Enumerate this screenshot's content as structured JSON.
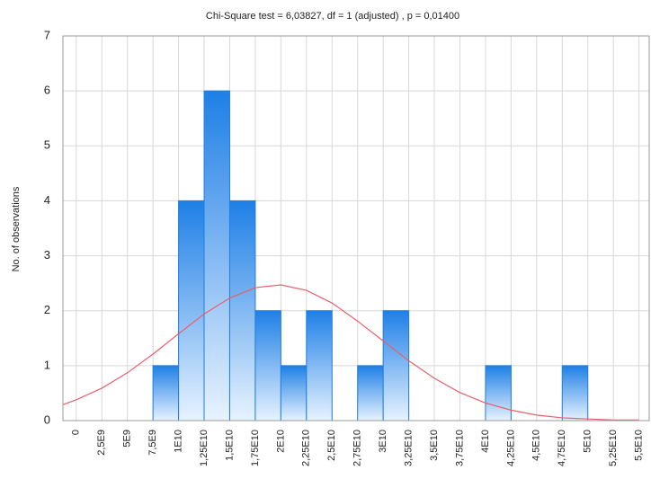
{
  "chart_data": {
    "type": "histogram",
    "title": "Chi-Square test = 6,03827, df = 1 (adjusted) , p = 0,01400",
    "ylabel": "No. of observations",
    "bins": [
      0,
      2500000000,
      5000000000,
      7500000000,
      10000000000,
      12500000000,
      15000000000,
      17500000000,
      20000000000,
      22500000000,
      25000000000,
      27500000000,
      30000000000,
      32500000000,
      35000000000,
      37500000000,
      40000000000,
      42500000000,
      45000000000,
      47500000000,
      50000000000,
      52500000000,
      55000000000
    ],
    "values": [
      0,
      0,
      0,
      1,
      4,
      6,
      4,
      2,
      1,
      2,
      0,
      1,
      2,
      0,
      0,
      0,
      1,
      0,
      0,
      1,
      0,
      0
    ],
    "color": "#1e7fe6",
    "curve": {
      "color": "#e8606a",
      "x": [
        -1300000000,
        0,
        2500000000,
        5000000000,
        7500000000,
        10000000000,
        12500000000,
        15000000000,
        17500000000,
        20000000000,
        22500000000,
        25000000000,
        27500000000,
        30000000000,
        32500000000,
        35000000000,
        37500000000,
        40000000000,
        42500000000,
        45000000000,
        47500000000,
        50000000000,
        52500000000,
        55000000000
      ],
      "values": [
        0.29,
        0.38,
        0.59,
        0.87,
        1.21,
        1.58,
        1.94,
        2.23,
        2.42,
        2.47,
        2.37,
        2.14,
        1.81,
        1.45,
        1.09,
        0.77,
        0.51,
        0.32,
        0.19,
        0.1,
        0.05,
        0.03,
        0.01,
        0.01
      ]
    },
    "xlim": [
      -1300000000,
      56000000000
    ],
    "xticks": [
      0,
      {
        "value": 2500000000,
        "label": "2,5E9"
      },
      {
        "value": 5000000000,
        "label": "5E9"
      },
      {
        "value": 7500000000,
        "label": "7,5E9"
      },
      {
        "value": 10000000000,
        "label": "1E10"
      },
      {
        "value": 12500000000,
        "label": "1,25E10"
      },
      {
        "value": 15000000000,
        "label": "1,5E10"
      },
      {
        "value": 17500000000,
        "label": "1,75E10"
      },
      {
        "value": 20000000000,
        "label": "2E10"
      },
      {
        "value": 22500000000,
        "label": "2,25E10"
      },
      {
        "value": 25000000000,
        "label": "2,5E10"
      },
      {
        "value": 27500000000,
        "label": "2,75E10"
      },
      {
        "value": 30000000000,
        "label": "3E10"
      },
      {
        "value": 32500000000,
        "label": "3,25E10"
      },
      {
        "value": 35000000000,
        "label": "3,5E10"
      },
      {
        "value": 37500000000,
        "label": "3,75E10"
      },
      {
        "value": 40000000000,
        "label": "4E10"
      },
      {
        "value": 42500000000,
        "label": "4,25E10"
      },
      {
        "value": 45000000000,
        "label": "4,5E10"
      },
      {
        "value": 47500000000,
        "label": "4,75E10"
      },
      {
        "value": 50000000000,
        "label": "5E10"
      },
      {
        "value": 52500000000,
        "label": "5,25E10"
      },
      {
        "value": 55000000000,
        "label": "5,5E10"
      }
    ],
    "ylim": [
      0,
      7
    ],
    "yticks": [
      0,
      1,
      2,
      3,
      4,
      5,
      6,
      7
    ],
    "grid": true
  }
}
